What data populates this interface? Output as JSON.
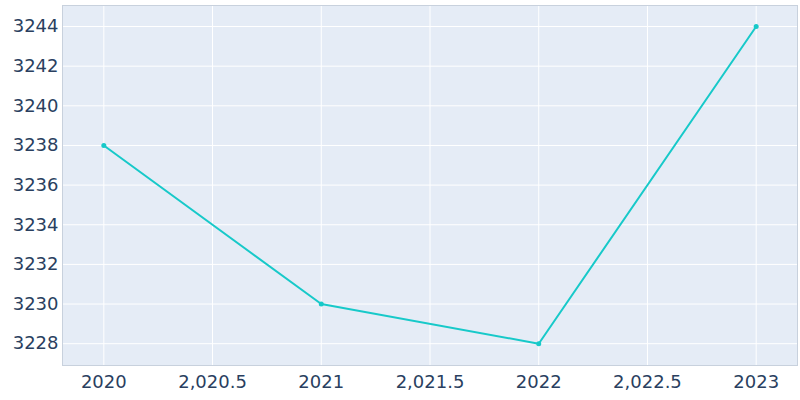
{
  "chart_data": {
    "type": "line",
    "x": [
      2020,
      2021,
      2022,
      2023
    ],
    "values": [
      3238,
      3230,
      3228,
      3244
    ],
    "color": "#17c9c9",
    "marker": "circle",
    "xlim": [
      2019.81,
      2023.19
    ],
    "xticks": [
      2020,
      {
        "value": 2020.5,
        "label": "2,020.5"
      },
      2021,
      {
        "value": 2021.5,
        "label": "2,021.5"
      },
      2022,
      {
        "value": 2022.5,
        "label": "2,022.5"
      },
      2023
    ],
    "ylim": [
      3226.9,
      3245.06
    ],
    "yticks": [
      3228,
      3230,
      3232,
      3234,
      3236,
      3238,
      3240,
      3242,
      3244
    ],
    "grid": true
  }
}
